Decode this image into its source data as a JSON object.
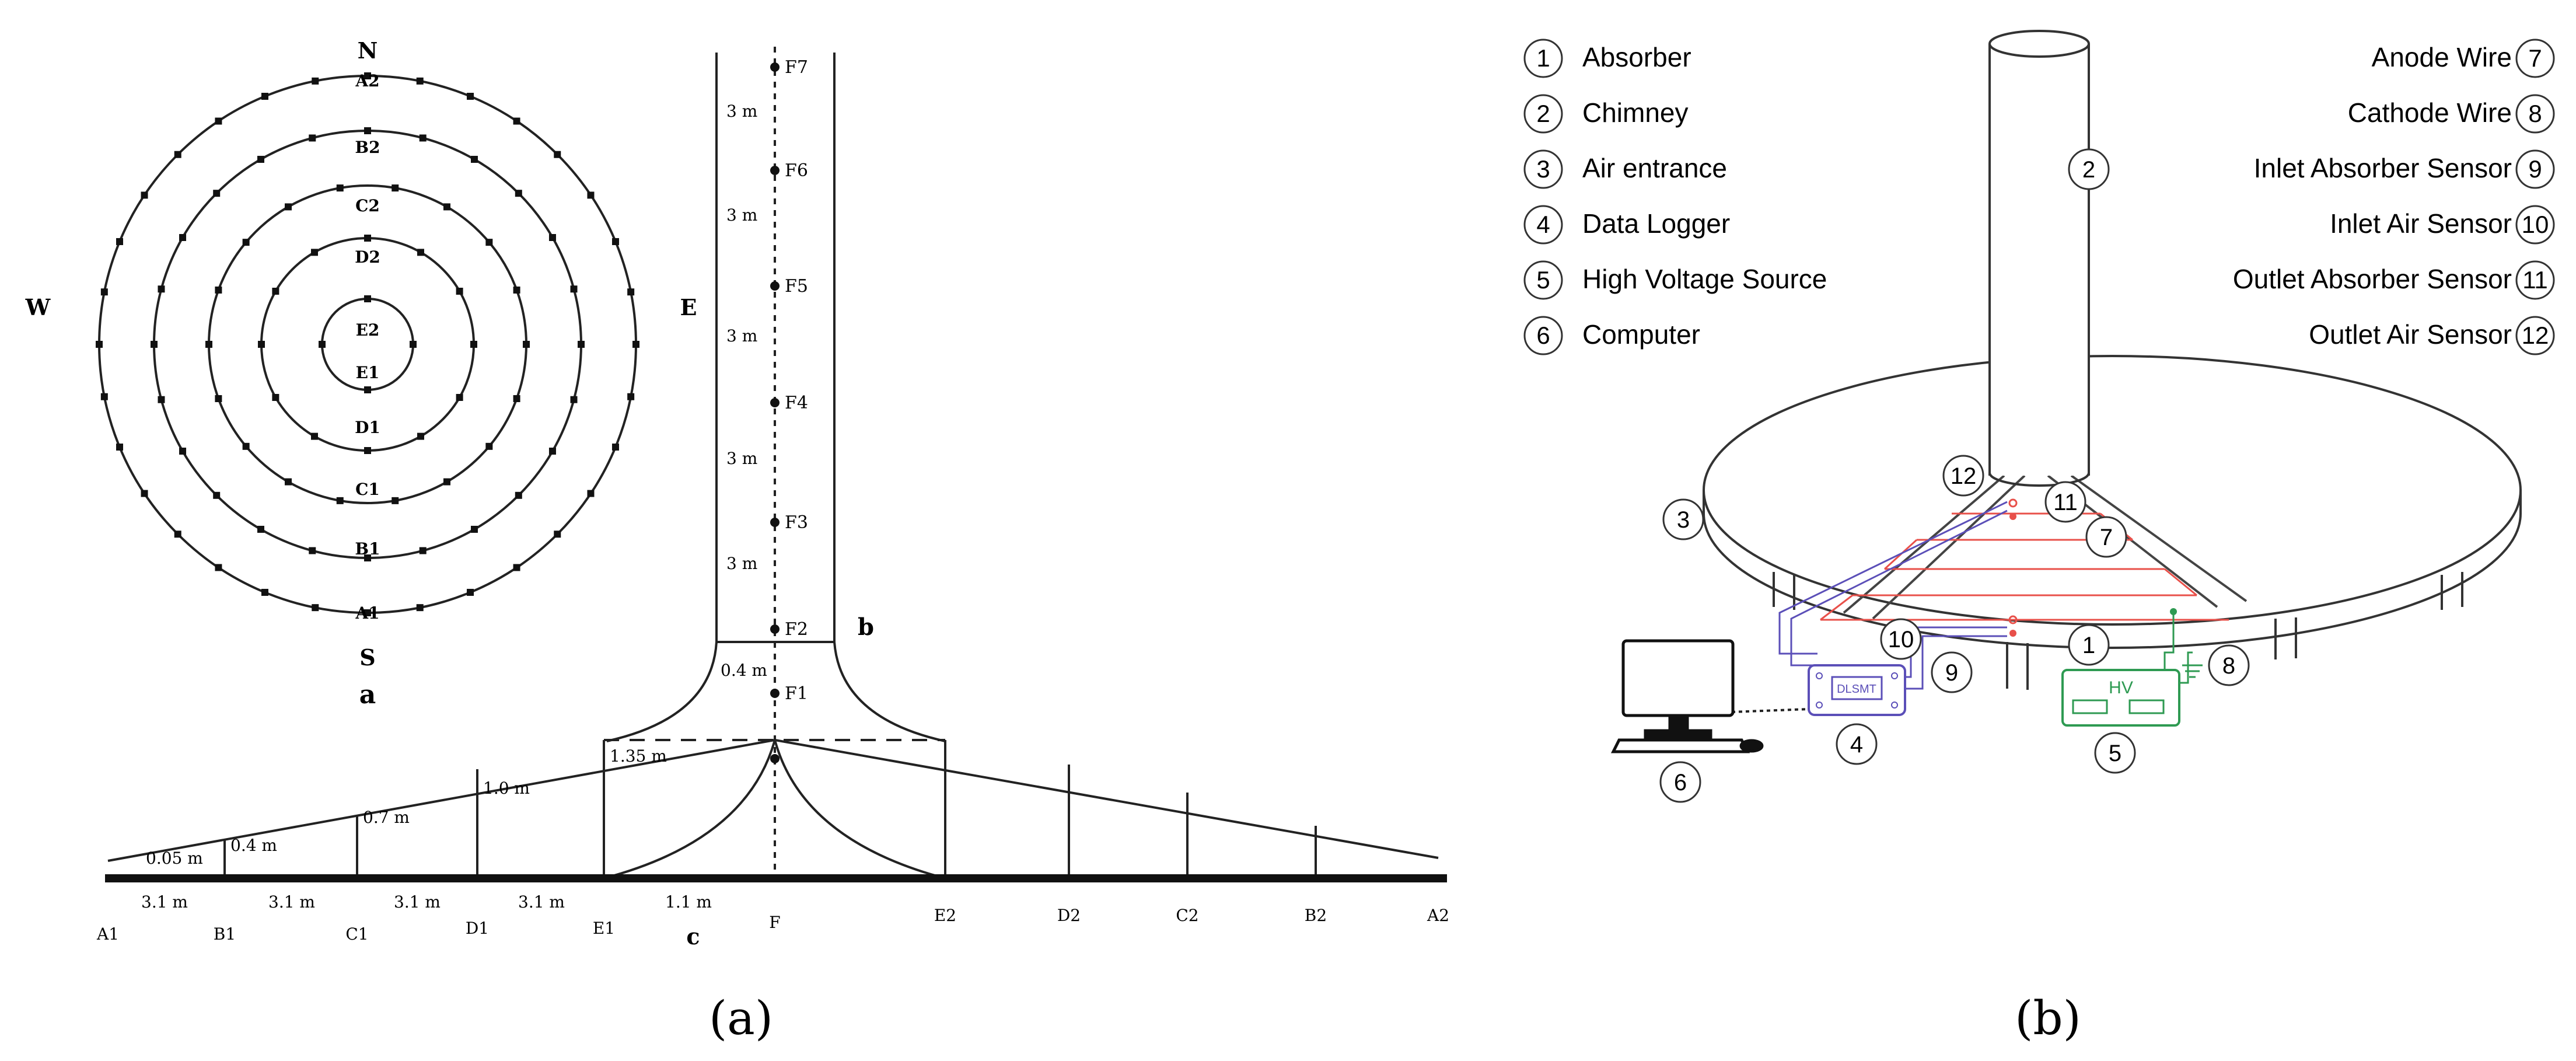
{
  "panel_a": {
    "compass": {
      "north": "N",
      "south": "S",
      "east": "E",
      "west": "W"
    },
    "ring_labels": [
      "A2",
      "B2",
      "C2",
      "D2",
      "E2",
      "E1",
      "D1",
      "C1",
      "B1",
      "A1"
    ],
    "sub_labels": {
      "a": "a",
      "b": "b",
      "c": "c"
    },
    "chimney_points": [
      "F7",
      "F6",
      "F5",
      "F4",
      "F3",
      "F2",
      "F1"
    ],
    "chimney_spacings": [
      "3 m",
      "3 m",
      "3 m",
      "3 m",
      "3 m"
    ],
    "chimney_gap": "0.4 m",
    "heights": [
      "0.05 m",
      "0.4 m",
      "0.7 m",
      "1.0 m",
      "1.35 m"
    ],
    "horizontal_spacings": [
      "3.1 m",
      "3.1 m",
      "3.1 m",
      "3.1 m",
      "1.1 m"
    ],
    "base_labels": [
      "A1",
      "B1",
      "C1",
      "D1",
      "E1",
      "F",
      "E2",
      "D2",
      "C2",
      "B2",
      "A2"
    ],
    "caption": "(a)"
  },
  "panel_b": {
    "legend_left": [
      {
        "num": "1",
        "label": "Absorber"
      },
      {
        "num": "2",
        "label": "Chimney"
      },
      {
        "num": "3",
        "label": "Air entrance"
      },
      {
        "num": "4",
        "label": "Data Logger"
      },
      {
        "num": "5",
        "label": "High Voltage Source"
      },
      {
        "num": "6",
        "label": "Computer"
      }
    ],
    "legend_right": [
      {
        "num": "7",
        "label": "Anode Wire"
      },
      {
        "num": "8",
        "label": "Cathode Wire"
      },
      {
        "num": "9",
        "label": "Inlet Absorber Sensor"
      },
      {
        "num": "10",
        "label": "Inlet Air Sensor"
      },
      {
        "num": "11",
        "label": "Outlet Absorber Sensor"
      },
      {
        "num": "12",
        "label": "Outlet  Air Sensor"
      }
    ],
    "callouts": [
      "1",
      "2",
      "3",
      "4",
      "5",
      "6",
      "7",
      "8",
      "9",
      "10",
      "11",
      "12"
    ],
    "logger_label": "DLSMT",
    "hv_label": "HV",
    "caption": "(b)",
    "colors": {
      "anode": "#e8504a",
      "sensor": "#5b4fb8",
      "hv": "#2e9a52",
      "line": "#333333"
    }
  }
}
